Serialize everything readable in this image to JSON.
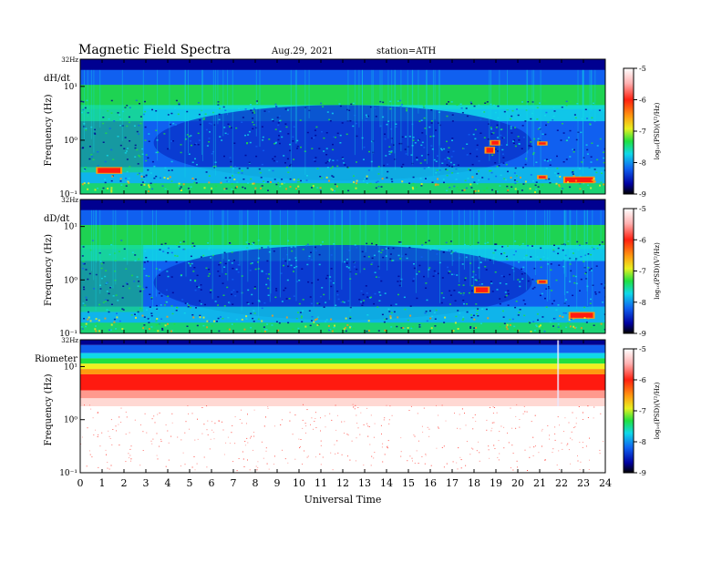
{
  "header": {
    "title": "Magnetic  Field  Spectra",
    "date": "Aug.29, 2021",
    "station": "station=ATH"
  },
  "colors": {
    "white": "#ffffff",
    "red": "#ff1a10",
    "orange": "#ff9a10",
    "yellow": "#f0f020",
    "green": "#20e040",
    "cyan": "#10d8e8",
    "blue": "#1060f0",
    "navy": "#000090",
    "black": "#000000"
  },
  "chart_data": [
    {
      "type": "heatmap",
      "panel_label": "dH/dt",
      "ylabel": "Frequency  (Hz)",
      "y_top_label": "32Hz",
      "y_ticks": [
        {
          "value": 10,
          "label": "10¹"
        },
        {
          "value": 1,
          "label": "10⁰"
        },
        {
          "value": 0.1,
          "label": "10⁻¹"
        }
      ],
      "ylim": [
        0.1,
        32
      ],
      "y_scale": "log",
      "colorbar": {
        "label": "log₁₀(PSD)(V²/Hz)",
        "ticks": [
          "-5",
          "-6",
          "-7",
          "-8",
          "-9"
        ],
        "range": [
          -9,
          -5
        ]
      }
    },
    {
      "type": "heatmap",
      "panel_label": "dD/dt",
      "ylabel": "Frequency  (Hz)",
      "y_top_label": "32Hz",
      "y_ticks": [
        {
          "value": 10,
          "label": "10¹"
        },
        {
          "value": 1,
          "label": "10⁰"
        },
        {
          "value": 0.1,
          "label": "10⁻¹"
        }
      ],
      "ylim": [
        0.1,
        32
      ],
      "y_scale": "log",
      "colorbar": {
        "label": "log₁₀(PSD)(V²/Hz)",
        "ticks": [
          "-5",
          "-6",
          "-7",
          "-8",
          "-9"
        ],
        "range": [
          -9,
          -5
        ]
      }
    },
    {
      "type": "heatmap",
      "panel_label": "Riometer",
      "ylabel": "Frequency  (Hz)",
      "y_top_label": "32Hz",
      "y_ticks": [
        {
          "value": 10,
          "label": "10¹"
        },
        {
          "value": 1,
          "label": "10⁰"
        },
        {
          "value": 0.1,
          "label": "10⁻¹"
        }
      ],
      "ylim": [
        0.1,
        32
      ],
      "y_scale": "log",
      "colorbar": {
        "label": "log₁₀(PSD)(V²/Hz)",
        "ticks": [
          "-5",
          "-6",
          "-7",
          "-8",
          "-9"
        ],
        "range": [
          -9,
          -5
        ]
      },
      "x_ticks": [
        "0",
        "1",
        "2",
        "3",
        "4",
        "5",
        "6",
        "7",
        "8",
        "9",
        "10",
        "11",
        "12",
        "13",
        "14",
        "15",
        "16",
        "17",
        "18",
        "19",
        "20",
        "21",
        "22",
        "23",
        "24"
      ],
      "xlim": [
        0,
        24
      ],
      "xlabel": "Universal Time"
    }
  ]
}
